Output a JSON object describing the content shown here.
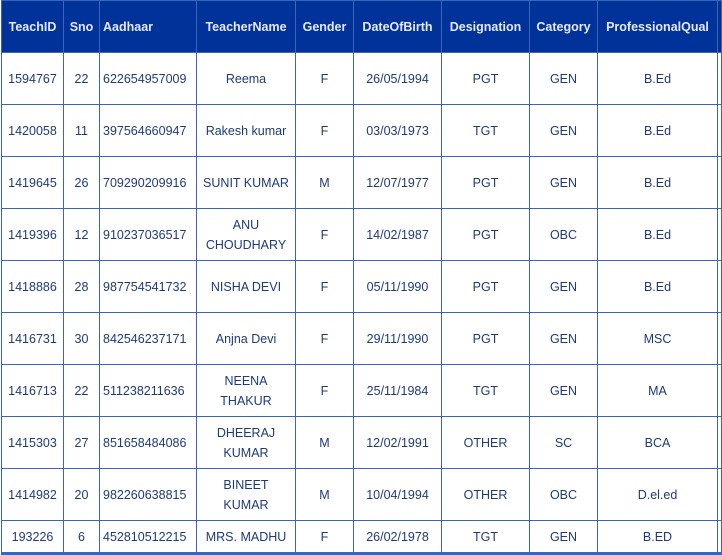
{
  "table": {
    "headers": [
      "TeachID",
      "Sno",
      "Aadhaar",
      "TeacherName",
      "Gender",
      "DateOfBirth",
      "Designation",
      "Category",
      "ProfessionalQual"
    ],
    "rows": [
      [
        "1594767",
        "22",
        "622654957009",
        "Reema",
        "F",
        "26/05/1994",
        "PGT",
        "GEN",
        "B.Ed"
      ],
      [
        "1420058",
        "11",
        "397564660947",
        "Rakesh kumar",
        "F",
        "03/03/1973",
        "TGT",
        "GEN",
        "B.Ed"
      ],
      [
        "1419645",
        "26",
        "709290209916",
        "SUNIT KUMAR",
        "M",
        "12/07/1977",
        "PGT",
        "GEN",
        "B.Ed"
      ],
      [
        "1419396",
        "12",
        "910237036517",
        "ANU CHOUDHARY",
        "F",
        "14/02/1987",
        "PGT",
        "OBC",
        "B.Ed"
      ],
      [
        "1418886",
        "28",
        "987754541732",
        "NISHA DEVI",
        "F",
        "05/11/1990",
        "PGT",
        "GEN",
        "B.Ed"
      ],
      [
        "1416731",
        "30",
        "842546237171",
        "Anjna Devi",
        "F",
        "29/11/1990",
        "PGT",
        "GEN",
        "MSC"
      ],
      [
        "1416713",
        "22",
        "511238211636",
        "NEENA THAKUR",
        "F",
        "25/11/1984",
        "TGT",
        "GEN",
        "MA"
      ],
      [
        "1415303",
        "27",
        "851658484086",
        "DHEERAJ KUMAR",
        "M",
        "12/02/1991",
        "OTHER",
        "SC",
        "BCA"
      ],
      [
        "1414982",
        "20",
        "982260638815",
        "BINEET KUMAR",
        "M",
        "10/04/1994",
        "OTHER",
        "OBC",
        "D.el.ed"
      ],
      [
        "193226",
        "6",
        "452810512215",
        "MRS. MADHU",
        "F",
        "26/02/1978",
        "TGT",
        "GEN",
        "B.ED"
      ]
    ]
  },
  "colors": {
    "header_bg": "#00329a",
    "border": "#3d64b8",
    "text": "#1f3a7a"
  }
}
